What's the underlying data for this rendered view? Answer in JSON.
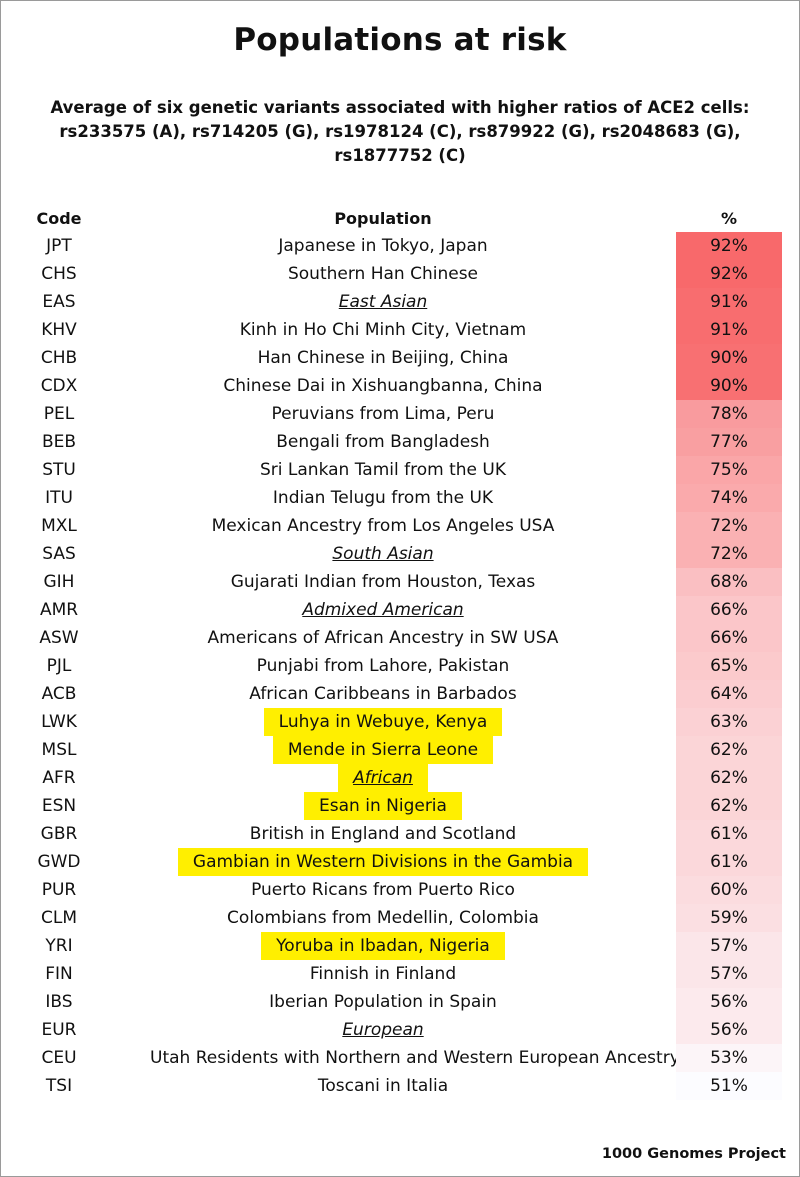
{
  "title": "Populations at risk",
  "subtitle": {
    "line1": "Average of six genetic variants associated with higher ratios of ACE2 cells:",
    "line2": "rs233575 (A), rs714205 (G), rs1978124 (C), rs879922 (G), rs2048683 (G),",
    "line3": "rs1877752 (C)"
  },
  "source": "1000 Genomes Project",
  "colors": {
    "heat_high": "#f8696b",
    "heat_low": "#fcfcff",
    "highlight": "#ffef00"
  },
  "chart_data": {
    "type": "table",
    "columns": [
      "Code",
      "Population",
      "%"
    ],
    "value_range": [
      51,
      92
    ],
    "rows": [
      {
        "code": "JPT",
        "population": "Japanese in Tokyo, Japan",
        "pct": 92,
        "label": "92%",
        "region": false,
        "highlight": false
      },
      {
        "code": "CHS",
        "population": "Southern Han Chinese",
        "pct": 92,
        "label": "92%",
        "region": false,
        "highlight": false
      },
      {
        "code": "EAS",
        "population": "East Asian",
        "pct": 91,
        "label": "91%",
        "region": true,
        "highlight": false
      },
      {
        "code": "KHV",
        "population": "Kinh in Ho Chi Minh City, Vietnam",
        "pct": 91,
        "label": "91%",
        "region": false,
        "highlight": false
      },
      {
        "code": "CHB",
        "population": "Han Chinese in Beijing, China",
        "pct": 90,
        "label": "90%",
        "region": false,
        "highlight": false
      },
      {
        "code": "CDX",
        "population": "Chinese Dai in Xishuangbanna, China",
        "pct": 90,
        "label": "90%",
        "region": false,
        "highlight": false
      },
      {
        "code": "PEL",
        "population": "Peruvians from Lima, Peru",
        "pct": 78,
        "label": "78%",
        "region": false,
        "highlight": false
      },
      {
        "code": "BEB",
        "population": "Bengali from Bangladesh",
        "pct": 77,
        "label": "77%",
        "region": false,
        "highlight": false
      },
      {
        "code": "STU",
        "population": "Sri Lankan Tamil from the UK",
        "pct": 75,
        "label": "75%",
        "region": false,
        "highlight": false
      },
      {
        "code": "ITU",
        "population": "Indian Telugu from the UK",
        "pct": 74,
        "label": "74%",
        "region": false,
        "highlight": false
      },
      {
        "code": "MXL",
        "population": "Mexican Ancestry from Los Angeles USA",
        "pct": 72,
        "label": "72%",
        "region": false,
        "highlight": false
      },
      {
        "code": "SAS",
        "population": "South Asian",
        "pct": 72,
        "label": "72%",
        "region": true,
        "highlight": false
      },
      {
        "code": "GIH",
        "population": "Gujarati Indian from Houston, Texas",
        "pct": 68,
        "label": "68%",
        "region": false,
        "highlight": false
      },
      {
        "code": "AMR",
        "population": "Admixed American",
        "pct": 66,
        "label": "66%",
        "region": true,
        "highlight": false
      },
      {
        "code": "ASW",
        "population": "Americans of African Ancestry in SW USA",
        "pct": 66,
        "label": "66%",
        "region": false,
        "highlight": false
      },
      {
        "code": "PJL",
        "population": "Punjabi from Lahore, Pakistan",
        "pct": 65,
        "label": "65%",
        "region": false,
        "highlight": false
      },
      {
        "code": "ACB",
        "population": "African Caribbeans in Barbados",
        "pct": 64,
        "label": "64%",
        "region": false,
        "highlight": false
      },
      {
        "code": "LWK",
        "population": "Luhya in Webuye, Kenya",
        "pct": 63,
        "label": "63%",
        "region": false,
        "highlight": true
      },
      {
        "code": "MSL",
        "population": "Mende in Sierra Leone",
        "pct": 62,
        "label": "62%",
        "region": false,
        "highlight": true
      },
      {
        "code": "AFR",
        "population": "African",
        "pct": 62,
        "label": "62%",
        "region": true,
        "highlight": true
      },
      {
        "code": "ESN",
        "population": "Esan in Nigeria",
        "pct": 62,
        "label": "62%",
        "region": false,
        "highlight": true
      },
      {
        "code": "GBR",
        "population": "British in England and Scotland",
        "pct": 61,
        "label": "61%",
        "region": false,
        "highlight": false
      },
      {
        "code": "GWD",
        "population": "Gambian in Western Divisions in the Gambia",
        "pct": 61,
        "label": "61%",
        "region": false,
        "highlight": true
      },
      {
        "code": "PUR",
        "population": "Puerto Ricans from Puerto Rico",
        "pct": 60,
        "label": "60%",
        "region": false,
        "highlight": false
      },
      {
        "code": "CLM",
        "population": "Colombians from Medellin, Colombia",
        "pct": 59,
        "label": "59%",
        "region": false,
        "highlight": false
      },
      {
        "code": "YRI",
        "population": "Yoruba in Ibadan, Nigeria",
        "pct": 57,
        "label": "57%",
        "region": false,
        "highlight": true
      },
      {
        "code": "FIN",
        "population": "Finnish in Finland",
        "pct": 57,
        "label": "57%",
        "region": false,
        "highlight": false
      },
      {
        "code": "IBS",
        "population": "Iberian Population in Spain",
        "pct": 56,
        "label": "56%",
        "region": false,
        "highlight": false
      },
      {
        "code": "EUR",
        "population": "European",
        "pct": 56,
        "label": "56%",
        "region": true,
        "highlight": false
      },
      {
        "code": "CEU",
        "population": "Utah Residents with Northern and Western European Ancestry",
        "pct": 53,
        "label": "53%",
        "region": false,
        "highlight": false
      },
      {
        "code": "TSI",
        "population": "Toscani in Italia",
        "pct": 51,
        "label": "51%",
        "region": false,
        "highlight": false
      }
    ]
  }
}
